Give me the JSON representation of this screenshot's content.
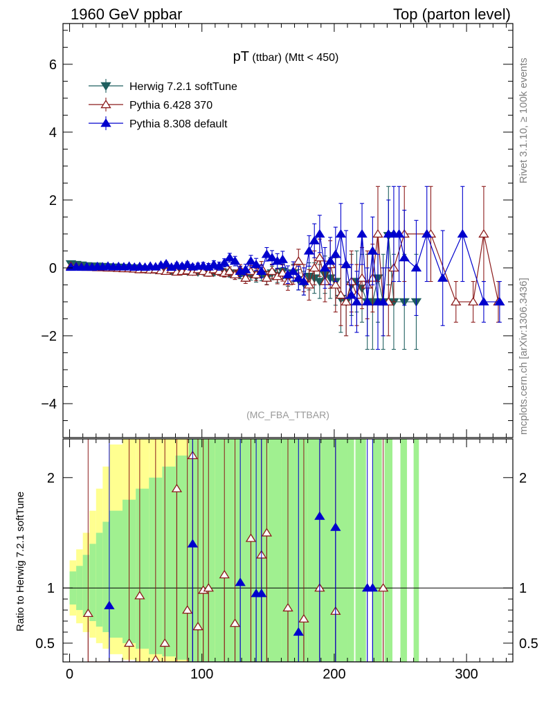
{
  "header": {
    "left": "1960 GeV ppbar",
    "right": "Top (parton level)"
  },
  "side": {
    "rivet": "Rivet 3.1.10, ≥ 100k events",
    "mcplots": "mcplots.cern.ch [arXiv:1306.3436]"
  },
  "plot": {
    "title_main": "pT",
    "title_sub": " (ttbar) (Mtt < 450)",
    "watermark": "(MC_FBA_TTBAR)"
  },
  "ratio": {
    "ylabel": "Ratio to Herwig 7.2.1 softTune"
  },
  "chart_data": [
    {
      "type": "line",
      "panel": "main",
      "xlim": [
        -5,
        335
      ],
      "ylim": [
        -5,
        7.2
      ],
      "yticks": [
        -4,
        -2,
        0,
        2,
        4,
        6
      ],
      "ytick_labels": [
        "−4",
        "−2",
        "0",
        "2",
        "4",
        "6"
      ],
      "xticks": [
        0,
        100,
        200,
        300
      ],
      "legend_position": "top-left",
      "series": [
        {
          "name": "Herwig 7.2.1 softTune",
          "color": "#1f5f5f",
          "marker": "triangle-down-filled",
          "x": [
            1,
            5,
            9,
            13,
            17,
            21,
            25,
            29,
            33,
            37,
            41,
            45,
            49,
            53,
            57,
            61,
            65,
            69,
            73,
            77,
            81,
            85,
            89,
            93,
            97,
            101,
            105,
            109,
            113,
            117,
            121,
            125,
            129,
            133,
            137,
            141,
            145,
            149,
            153,
            157,
            161,
            165,
            169,
            173,
            177,
            181,
            185,
            189,
            193,
            197,
            201,
            205,
            209,
            213,
            217,
            221,
            225,
            229,
            233,
            237,
            241,
            245,
            253,
            262
          ],
          "y": [
            0.12,
            0.1,
            0.08,
            0.06,
            0.05,
            0.05,
            0.04,
            0.03,
            0.02,
            0.02,
            0.01,
            0.0,
            0.0,
            -0.02,
            -0.03,
            -0.04,
            -0.05,
            -0.06,
            -0.07,
            -0.08,
            -0.08,
            -0.09,
            -0.1,
            -0.1,
            -0.12,
            -0.1,
            -0.12,
            -0.13,
            -0.1,
            -0.14,
            -0.15,
            -0.2,
            -0.18,
            -0.25,
            -0.2,
            -0.25,
            -0.2,
            -0.3,
            -0.15,
            -0.22,
            -0.1,
            -0.3,
            -0.15,
            -0.35,
            -0.45,
            -0.25,
            -0.3,
            -0.4,
            -0.2,
            -0.3,
            -0.4,
            -0.9,
            -1.0,
            -0.5,
            -0.4,
            -0.6,
            -1.0,
            -1.0,
            -0.3,
            -1.0,
            0.95,
            -1.0,
            -1.0,
            -1.0
          ],
          "err": [
            0.02,
            0.02,
            0.02,
            0.02,
            0.02,
            0.02,
            0.02,
            0.02,
            0.03,
            0.03,
            0.03,
            0.03,
            0.03,
            0.04,
            0.04,
            0.04,
            0.05,
            0.05,
            0.05,
            0.06,
            0.06,
            0.07,
            0.07,
            0.08,
            0.08,
            0.09,
            0.1,
            0.1,
            0.11,
            0.12,
            0.12,
            0.14,
            0.14,
            0.15,
            0.16,
            0.17,
            0.18,
            0.19,
            0.2,
            0.21,
            0.22,
            0.24,
            0.26,
            0.3,
            0.35,
            0.4,
            0.45,
            0.5,
            0.55,
            0.6,
            0.7,
            1.0,
            1.0,
            0.9,
            0.9,
            1.0,
            1.4,
            1.4,
            1.3,
            1.4,
            1.45,
            1.4,
            1.4,
            1.4
          ]
        },
        {
          "name": "Pythia 6.428 370",
          "color": "#8b1a1a",
          "marker": "triangle-up-open",
          "x": [
            1,
            5,
            9,
            13,
            17,
            21,
            25,
            29,
            33,
            37,
            41,
            45,
            49,
            53,
            57,
            61,
            65,
            69,
            73,
            77,
            81,
            85,
            89,
            93,
            97,
            101,
            105,
            109,
            113,
            117,
            121,
            125,
            129,
            133,
            137,
            141,
            145,
            149,
            153,
            157,
            161,
            165,
            169,
            173,
            177,
            181,
            185,
            189,
            193,
            197,
            201,
            205,
            209,
            213,
            217,
            221,
            225,
            229,
            233,
            237,
            241,
            245,
            253,
            273,
            292,
            305,
            313,
            324
          ],
          "y": [
            0.05,
            0.04,
            0.03,
            0.02,
            0.02,
            0.01,
            0.01,
            0.0,
            0.0,
            -0.01,
            -0.02,
            -0.02,
            -0.03,
            -0.05,
            -0.04,
            -0.06,
            -0.05,
            -0.08,
            -0.1,
            -0.05,
            -0.12,
            -0.1,
            -0.08,
            -0.12,
            -0.05,
            -0.1,
            -0.15,
            -0.05,
            -0.1,
            -0.15,
            -0.1,
            -0.2,
            -0.05,
            -0.3,
            -0.1,
            -0.2,
            0.0,
            -0.3,
            -0.1,
            -0.25,
            -0.15,
            -0.4,
            -0.2,
            0.2,
            -0.3,
            -0.5,
            0.0,
            0.3,
            -0.4,
            0.1,
            -0.5,
            -0.8,
            -1.0,
            -0.4,
            -0.8,
            -0.3,
            -0.5,
            -0.3,
            1.0,
            -1.0,
            -1.0,
            0.0,
            1.0,
            1.0,
            -1.0,
            -1.0,
            1.0,
            -1.0
          ],
          "err": [
            0.02,
            0.02,
            0.02,
            0.02,
            0.02,
            0.02,
            0.02,
            0.03,
            0.03,
            0.03,
            0.03,
            0.03,
            0.04,
            0.04,
            0.04,
            0.05,
            0.05,
            0.05,
            0.06,
            0.06,
            0.07,
            0.07,
            0.08,
            0.08,
            0.09,
            0.1,
            0.1,
            0.11,
            0.12,
            0.12,
            0.13,
            0.14,
            0.15,
            0.16,
            0.17,
            0.18,
            0.19,
            0.2,
            0.21,
            0.22,
            0.24,
            0.26,
            0.28,
            0.35,
            0.4,
            0.45,
            0.5,
            0.55,
            0.6,
            0.7,
            0.8,
            0.9,
            1.0,
            0.9,
            0.9,
            0.9,
            1.0,
            1.0,
            1.4,
            1.0,
            1.0,
            1.0,
            1.4,
            1.4,
            0.6,
            0.6,
            1.4,
            0.6
          ]
        },
        {
          "name": "Pythia 8.308 default",
          "color": "#0000cd",
          "marker": "triangle-up-filled",
          "x": [
            1,
            5,
            9,
            13,
            17,
            21,
            25,
            29,
            33,
            37,
            41,
            45,
            49,
            53,
            57,
            61,
            65,
            69,
            73,
            77,
            81,
            85,
            89,
            93,
            97,
            101,
            105,
            109,
            113,
            117,
            121,
            125,
            129,
            133,
            137,
            141,
            145,
            149,
            153,
            157,
            161,
            165,
            169,
            173,
            177,
            181,
            185,
            189,
            193,
            197,
            201,
            205,
            209,
            213,
            217,
            221,
            225,
            229,
            233,
            237,
            241,
            245,
            249,
            253,
            262,
            270,
            282,
            297,
            313,
            325
          ],
          "y": [
            0.02,
            0.03,
            0.02,
            0.03,
            0.02,
            0.04,
            0.03,
            0.05,
            0.03,
            0.04,
            0.03,
            0.05,
            0.02,
            0.04,
            0.02,
            0.05,
            0.03,
            0.08,
            0.12,
            0.02,
            0.08,
            0.05,
            0.1,
            0.03,
            0.05,
            0.06,
            0.03,
            0.1,
            0.05,
            0.15,
            0.3,
            0.2,
            -0.1,
            -0.05,
            0.2,
            0.1,
            -0.1,
            0.4,
            0.3,
            0.2,
            0.25,
            -0.2,
            -0.1,
            -0.3,
            -0.4,
            0.5,
            0.8,
            1.0,
            0.0,
            0.2,
            0.4,
            1.0,
            0.1,
            -0.8,
            -1.0,
            1.0,
            -1.0,
            0.5,
            -1.0,
            -1.0,
            1.0,
            1.0,
            1.0,
            0.3,
            0.0,
            1.0,
            -0.3,
            1.0,
            -1.0,
            -1.0
          ],
          "err": [
            0.02,
            0.02,
            0.02,
            0.02,
            0.02,
            0.02,
            0.02,
            0.03,
            0.03,
            0.03,
            0.03,
            0.03,
            0.04,
            0.04,
            0.04,
            0.05,
            0.05,
            0.06,
            0.06,
            0.06,
            0.07,
            0.07,
            0.08,
            0.08,
            0.09,
            0.1,
            0.1,
            0.11,
            0.12,
            0.12,
            0.13,
            0.14,
            0.15,
            0.16,
            0.17,
            0.18,
            0.19,
            0.2,
            0.21,
            0.22,
            0.24,
            0.26,
            0.28,
            0.35,
            0.4,
            0.45,
            0.5,
            0.55,
            0.6,
            0.7,
            0.8,
            0.9,
            1.0,
            0.9,
            0.9,
            0.9,
            1.0,
            1.0,
            1.4,
            1.0,
            1.0,
            1.4,
            1.4,
            1.4,
            1.4,
            1.4,
            1.4,
            1.4,
            0.6,
            0.6
          ]
        }
      ]
    },
    {
      "type": "line",
      "panel": "ratio",
      "xlim": [
        -5,
        335
      ],
      "ylim": [
        0.33,
        2.35
      ],
      "yticks": [
        0.5,
        1,
        2
      ],
      "ytick_labels": [
        "0.5",
        "1",
        "2"
      ],
      "xticks": [
        0,
        100,
        200,
        300
      ],
      "xtick_labels": [
        "0",
        "100",
        "200",
        "300"
      ],
      "reference_line": 1,
      "band_colors": {
        "inner": "#a0f090",
        "outer": "#ffff90"
      },
      "band_x": [
        0,
        5,
        10,
        15,
        20,
        25,
        30,
        40,
        50,
        60,
        70,
        80,
        90,
        100,
        110,
        120,
        130,
        140,
        150,
        160,
        170,
        180,
        190,
        200,
        210
      ],
      "band_inner": [
        [
          0.85,
          1.15
        ],
        [
          0.8,
          1.2
        ],
        [
          0.75,
          1.3
        ],
        [
          0.7,
          1.4
        ],
        [
          0.65,
          1.5
        ],
        [
          0.6,
          1.6
        ],
        [
          0.55,
          1.7
        ],
        [
          0.5,
          1.8
        ],
        [
          0.45,
          1.9
        ],
        [
          0.4,
          2.0
        ],
        [
          0.38,
          2.1
        ],
        [
          0.35,
          2.2
        ],
        [
          0.33,
          2.35
        ],
        [
          0.33,
          2.35
        ],
        [
          0.33,
          2.35
        ],
        [
          0.33,
          2.35
        ],
        [
          0.33,
          2.35
        ],
        [
          0.33,
          2.35
        ],
        [
          0.33,
          2.35
        ],
        [
          0.33,
          2.35
        ],
        [
          0.33,
          2.35
        ],
        [
          0.33,
          2.35
        ],
        [
          0.33,
          2.35
        ],
        [
          0.33,
          2.35
        ],
        [
          0.33,
          2.35
        ]
      ],
      "band_outer": [
        [
          0.75,
          1.25
        ],
        [
          0.68,
          1.35
        ],
        [
          0.6,
          1.5
        ],
        [
          0.55,
          1.7
        ],
        [
          0.5,
          1.9
        ],
        [
          0.45,
          2.1
        ],
        [
          0.4,
          2.3
        ],
        [
          0.35,
          2.35
        ],
        [
          0.33,
          2.35
        ],
        [
          0.33,
          2.35
        ],
        [
          0.33,
          2.35
        ],
        [
          0.33,
          2.35
        ],
        [
          0.33,
          2.35
        ],
        [
          0.33,
          2.35
        ],
        [
          0.33,
          2.35
        ],
        [
          0.33,
          2.35
        ],
        [
          0.33,
          2.35
        ],
        [
          0.33,
          2.35
        ],
        [
          0.33,
          2.35
        ],
        [
          0.33,
          2.35
        ],
        [
          0.33,
          2.35
        ],
        [
          0.33,
          2.35
        ],
        [
          0.33,
          2.35
        ],
        [
          0.33,
          2.35
        ],
        [
          0.33,
          2.35
        ]
      ],
      "green_only_bins": [
        [
          216,
          224
        ],
        [
          229,
          236
        ],
        [
          238,
          244
        ],
        [
          250,
          255
        ],
        [
          260,
          264
        ]
      ],
      "series": [
        {
          "name": "Pythia 6.428 370",
          "color": "#8b1a1a",
          "marker": "triangle-up-open",
          "x": [
            14,
            45,
            53,
            65,
            72,
            81,
            89,
            93,
            97,
            101,
            105,
            117,
            125,
            137,
            145,
            149,
            165,
            177,
            189,
            201,
            237
          ],
          "y": [
            0.77,
            0.5,
            0.93,
            0.35,
            0.5,
            1.9,
            0.8,
            2.2,
            0.65,
            0.98,
            1.0,
            1.12,
            0.68,
            1.45,
            1.3,
            1.5,
            0.82,
            0.72,
            1.0,
            0.79,
            1.0
          ]
        },
        {
          "name": "Pythia 8.308 default",
          "color": "#0000cd",
          "marker": "triangle-up-filled",
          "x": [
            30,
            93,
            129,
            141,
            145,
            173,
            189,
            201,
            225,
            229
          ],
          "y": [
            0.84,
            1.4,
            1.05,
            0.95,
            0.95,
            0.6,
            1.65,
            1.55,
            1.0,
            1.0
          ]
        }
      ]
    }
  ]
}
